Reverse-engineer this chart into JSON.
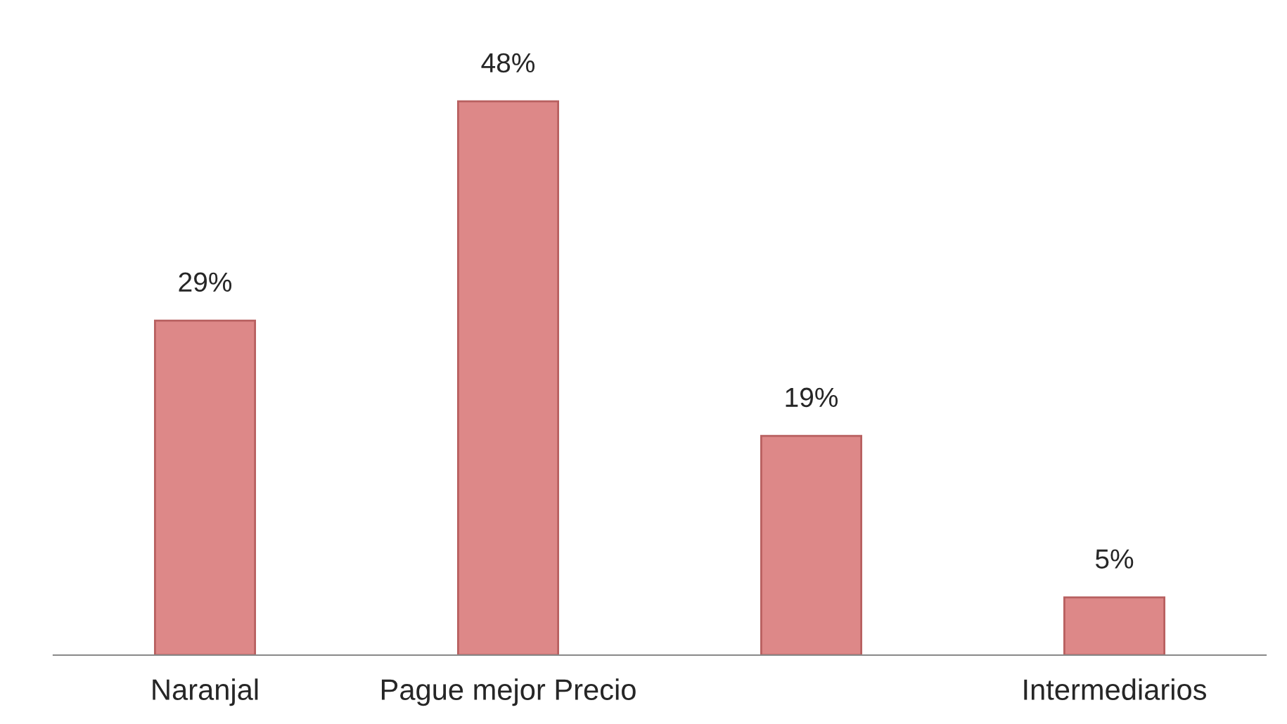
{
  "chart_data": {
    "type": "bar",
    "categories": [
      "Naranjal",
      "Pague mejor Precio",
      null,
      "Intermediarios"
    ],
    "values": [
      29,
      48,
      19,
      5
    ],
    "value_labels": [
      "29%",
      "48%",
      "19%",
      "5%"
    ],
    "color": "#dd8888"
  }
}
